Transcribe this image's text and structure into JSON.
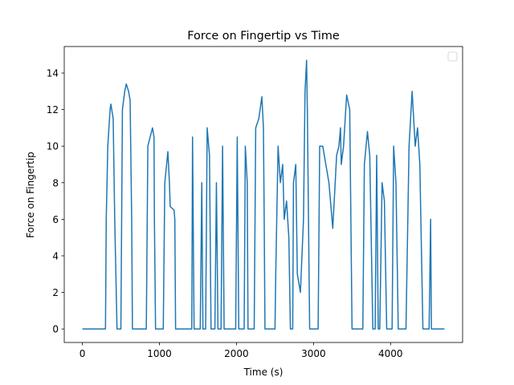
{
  "chart_data": {
    "type": "line",
    "title": "Force on Fingertip vs Time",
    "x_label": "Time (s)",
    "y_label": "Force on Fingertip",
    "x": [
      0,
      300,
      310,
      330,
      360,
      370,
      400,
      420,
      430,
      450,
      500,
      520,
      550,
      570,
      600,
      620,
      640,
      650,
      830,
      850,
      880,
      910,
      930,
      935,
      950,
      1050,
      1070,
      1110,
      1130,
      1140,
      1190,
      1200,
      1210,
      1420,
      1430,
      1450,
      1530,
      1550,
      1565,
      1600,
      1620,
      1650,
      1670,
      1720,
      1740,
      1760,
      1800,
      1820,
      1840,
      1990,
      2010,
      2030,
      2100,
      2115,
      2140,
      2150,
      2230,
      2250,
      2290,
      2330,
      2350,
      2360,
      2370,
      2500,
      2510,
      2540,
      2570,
      2600,
      2620,
      2650,
      2680,
      2700,
      2730,
      2740,
      2770,
      2790,
      2830,
      2870,
      2890,
      2910,
      2920,
      2950,
      3060,
      3080,
      3120,
      3200,
      3250,
      3300,
      3330,
      3350,
      3360,
      3390,
      3430,
      3470,
      3500,
      3640,
      3660,
      3700,
      3730,
      3770,
      3800,
      3820,
      3840,
      3860,
      3890,
      3920,
      3950,
      4020,
      4040,
      4070,
      4100,
      4200,
      4240,
      4280,
      4320,
      4350,
      4380,
      4420,
      4500,
      4520,
      4530,
      4700
    ],
    "series": [
      {
        "color": "#1f77b4",
        "values": [
          0,
          0,
          6,
          10,
          12,
          12.3,
          11.5,
          6,
          4,
          0,
          0,
          12,
          13,
          13.4,
          13,
          12.5,
          6,
          0,
          0,
          10,
          10.5,
          11,
          10.5,
          6,
          0,
          0,
          8,
          9.7,
          8,
          6.7,
          6.5,
          6,
          0,
          0,
          10.5,
          0,
          0,
          8,
          0,
          0,
          11,
          9.5,
          0,
          0,
          8,
          0,
          0,
          10,
          0,
          0,
          10.5,
          0,
          0,
          10,
          8,
          0,
          0,
          11,
          11.5,
          12.7,
          11,
          6,
          0,
          0,
          3,
          10,
          8,
          9,
          6,
          7,
          5,
          0,
          0,
          8,
          9,
          3,
          2,
          6,
          13,
          14.7,
          12,
          0,
          0,
          10,
          10,
          8,
          5.5,
          9.5,
          10,
          11,
          9,
          10,
          12.8,
          12,
          0,
          0,
          9,
          10.8,
          9.5,
          0,
          0,
          9.5,
          0,
          0,
          8,
          7,
          0,
          0,
          10,
          8,
          0,
          0,
          10,
          13,
          10,
          11,
          9,
          0,
          0,
          6,
          0,
          0
        ]
      }
    ],
    "xlim": [
      -235,
      4935
    ],
    "ylim": [
      -0.74,
      15.45
    ],
    "xticks": [
      0,
      1000,
      2000,
      3000,
      4000
    ],
    "yticks": [
      0,
      2,
      4,
      6,
      8,
      10,
      12,
      14
    ]
  }
}
